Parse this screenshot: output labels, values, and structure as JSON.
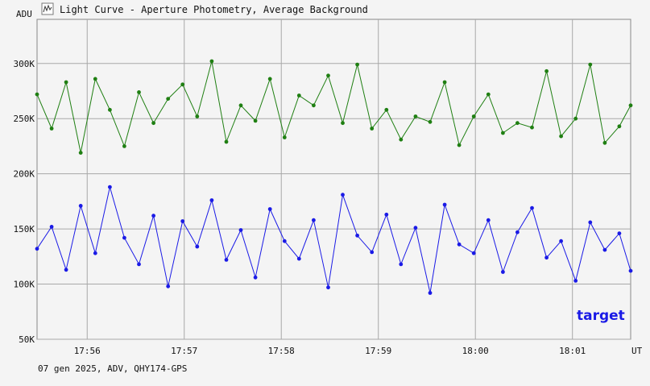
{
  "window": {
    "icon": "light-curve-icon",
    "title": "Light Curve - Aperture Photometry, Average Background"
  },
  "footer": {
    "info": "07 gen 2025, ADV, QHY174-GPS"
  },
  "chart_data": {
    "type": "line",
    "ylabel": "ADU",
    "xlabel": "UT",
    "ylim": [
      50000,
      340000
    ],
    "y_ticks": [
      {
        "value": 50000,
        "label": "50K"
      },
      {
        "value": 100000,
        "label": "100K"
      },
      {
        "value": 150000,
        "label": "150K"
      },
      {
        "value": 200000,
        "label": "200K"
      },
      {
        "value": 250000,
        "label": "250K"
      },
      {
        "value": 300000,
        "label": "300K"
      }
    ],
    "xlim": [
      "17:55:29",
      "18:01:36"
    ],
    "x_ticks": [
      {
        "value": "17:56:00",
        "label": "17:56"
      },
      {
        "value": "17:57:00",
        "label": "17:57"
      },
      {
        "value": "17:58:00",
        "label": "17:58"
      },
      {
        "value": "17:59:00",
        "label": "17:59"
      },
      {
        "value": "18:00:00",
        "label": "18:00"
      },
      {
        "value": "18:01:00",
        "label": "18:01"
      }
    ],
    "grid": true,
    "legend_position": "bottom-right",
    "series": [
      {
        "name": "",
        "color": "#1f7f12",
        "x": [
          "17:55:29",
          "17:55:38",
          "17:55:47",
          "17:55:56",
          "17:56:05",
          "17:56:14",
          "17:56:23",
          "17:56:32",
          "17:56:41",
          "17:56:50",
          "17:56:59",
          "17:57:08",
          "17:57:17",
          "17:57:26",
          "17:57:35",
          "17:57:44",
          "17:57:53",
          "17:58:02",
          "17:58:11",
          "17:58:20",
          "17:58:29",
          "17:58:38",
          "17:58:47",
          "17:58:56",
          "17:59:05",
          "17:59:14",
          "17:59:23",
          "17:59:32",
          "17:59:41",
          "17:59:50",
          "17:59:59",
          "18:00:08",
          "18:00:17",
          "18:00:26",
          "18:00:35",
          "18:00:44",
          "18:00:53",
          "18:01:02",
          "18:01:11",
          "18:01:20",
          "18:01:29",
          "18:01:36"
        ],
        "y": [
          272000,
          241000,
          283000,
          219000,
          286000,
          258000,
          225000,
          274000,
          246000,
          268000,
          281000,
          252000,
          302000,
          229000,
          262000,
          248000,
          286000,
          233000,
          271000,
          262000,
          289000,
          246000,
          299000,
          241000,
          258000,
          231000,
          252000,
          247000,
          283000,
          226000,
          252000,
          272000,
          237000,
          246000,
          242000,
          293000,
          234000,
          250000,
          299000,
          228000,
          243000,
          262000
        ]
      },
      {
        "name": "target",
        "color": "#1a1ae6",
        "x": [
          "17:55:29",
          "17:55:38",
          "17:55:47",
          "17:55:56",
          "17:56:05",
          "17:56:14",
          "17:56:23",
          "17:56:32",
          "17:56:41",
          "17:56:50",
          "17:56:59",
          "17:57:08",
          "17:57:17",
          "17:57:26",
          "17:57:35",
          "17:57:44",
          "17:57:53",
          "17:58:02",
          "17:58:11",
          "17:58:20",
          "17:58:29",
          "17:58:38",
          "17:58:47",
          "17:58:56",
          "17:59:05",
          "17:59:14",
          "17:59:23",
          "17:59:32",
          "17:59:41",
          "17:59:50",
          "17:59:59",
          "18:00:08",
          "18:00:17",
          "18:00:26",
          "18:00:35",
          "18:00:44",
          "18:00:53",
          "18:01:02",
          "18:01:11",
          "18:01:20",
          "18:01:29",
          "18:01:36"
        ],
        "y": [
          132000,
          152000,
          113000,
          171000,
          128000,
          188000,
          142000,
          118000,
          162000,
          98000,
          157000,
          134000,
          176000,
          122000,
          149000,
          106000,
          168000,
          139000,
          123000,
          158000,
          97000,
          181000,
          144000,
          129000,
          163000,
          118000,
          151000,
          92000,
          172000,
          136000,
          128000,
          158000,
          111000,
          147000,
          169000,
          124000,
          139000,
          103000,
          156000,
          131000,
          146000,
          112000
        ]
      }
    ]
  }
}
